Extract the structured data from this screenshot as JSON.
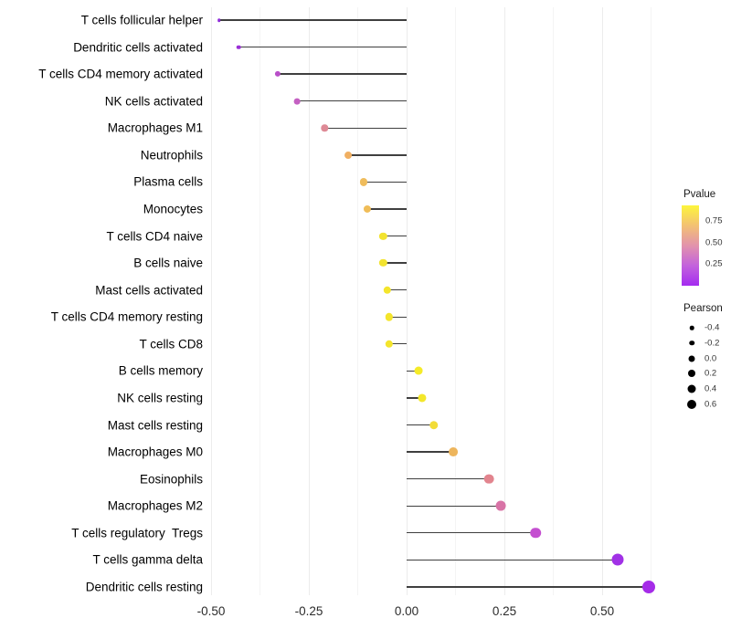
{
  "chart_data": {
    "type": "scatter",
    "subtype": "lollipop",
    "title": "",
    "xlabel": "",
    "ylabel": "",
    "xlim": [
      -0.52,
      0.66
    ],
    "grid": {
      "vertical_only": true,
      "major_values": [
        -0.5,
        -0.25,
        0.0,
        0.25,
        0.5
      ],
      "minor_values": [
        -0.375,
        -0.125,
        0.125,
        0.375,
        0.625
      ]
    },
    "x_ticks": [
      {
        "value": -0.5,
        "label": "-0.50"
      },
      {
        "value": -0.25,
        "label": "-0.25"
      },
      {
        "value": 0.0,
        "label": "0.00"
      },
      {
        "value": 0.25,
        "label": "0.25"
      },
      {
        "value": 0.5,
        "label": "0.50"
      }
    ],
    "points": [
      {
        "label": "T cells follicular helper",
        "pearson": -0.48,
        "pvalue_est": 0.03,
        "color": "#8E2BD8",
        "size": 3.6
      },
      {
        "label": "Dendritic cells activated",
        "pearson": -0.43,
        "pvalue_est": 0.06,
        "color": "#9A2FD6",
        "size": 4.6
      },
      {
        "label": "T cells CD4 memory activated",
        "pearson": -0.33,
        "pvalue_est": 0.12,
        "color": "#B84FC8",
        "size": 6.2
      },
      {
        "label": "NK cells activated",
        "pearson": -0.28,
        "pvalue_est": 0.18,
        "color": "#C460C2",
        "size": 6.8
      },
      {
        "label": "Macrophages M1",
        "pearson": -0.21,
        "pvalue_est": 0.33,
        "color": "#DE8A96",
        "size": 7.4
      },
      {
        "label": "Neutrophils",
        "pearson": -0.15,
        "pvalue_est": 0.55,
        "color": "#F0AF62",
        "size": 7.9
      },
      {
        "label": "Plasma cells",
        "pearson": -0.11,
        "pvalue_est": 0.6,
        "color": "#EFBC5C",
        "size": 8.1
      },
      {
        "label": "Monocytes",
        "pearson": -0.1,
        "pvalue_est": 0.6,
        "color": "#F0BD58",
        "size": 8.1
      },
      {
        "label": "T cells CD4 naive",
        "pearson": -0.06,
        "pvalue_est": 0.78,
        "color": "#F2E330",
        "size": 8.3
      },
      {
        "label": "B cells naive",
        "pearson": -0.06,
        "pvalue_est": 0.78,
        "color": "#F2E330",
        "size": 8.3
      },
      {
        "label": "Mast cells activated",
        "pearson": -0.05,
        "pvalue_est": 0.8,
        "color": "#F4E52C",
        "size": 8.4
      },
      {
        "label": "T cells CD4 memory resting",
        "pearson": -0.045,
        "pvalue_est": 0.8,
        "color": "#F4E52C",
        "size": 8.4
      },
      {
        "label": "T cells CD8",
        "pearson": -0.045,
        "pvalue_est": 0.8,
        "color": "#F4E52C",
        "size": 8.4
      },
      {
        "label": "B cells memory",
        "pearson": 0.03,
        "pvalue_est": 0.85,
        "color": "#F5EB28",
        "size": 8.9
      },
      {
        "label": "NK cells resting",
        "pearson": 0.04,
        "pvalue_est": 0.82,
        "color": "#F3E72B",
        "size": 9.1
      },
      {
        "label": "Mast cells resting",
        "pearson": 0.07,
        "pvalue_est": 0.72,
        "color": "#F2DC38",
        "size": 9.5
      },
      {
        "label": "Macrophages M0",
        "pearson": 0.12,
        "pvalue_est": 0.57,
        "color": "#EDB55C",
        "size": 9.9
      },
      {
        "label": "Eosinophils",
        "pearson": 0.21,
        "pvalue_est": 0.33,
        "color": "#E2848E",
        "size": 10.7
      },
      {
        "label": "Macrophages M2",
        "pearson": 0.24,
        "pvalue_est": 0.25,
        "color": "#D873A6",
        "size": 10.9
      },
      {
        "label": "T cells regulatory  Tregs",
        "pearson": 0.33,
        "pvalue_est": 0.13,
        "color": "#C44FD0",
        "size": 11.6
      },
      {
        "label": "T cells gamma delta",
        "pearson": 0.54,
        "pvalue_est": 0.05,
        "color": "#A131E6",
        "size": 13.0
      },
      {
        "label": "Dendritic cells resting",
        "pearson": 0.62,
        "pvalue_est": 0.04,
        "color": "#A52CE8",
        "size": 14.0
      }
    ],
    "legend_pvalue": {
      "title": "Pvalue",
      "ticks": [
        {
          "label": "0.75",
          "offset": 17
        },
        {
          "label": "0.50",
          "offset": 41
        },
        {
          "label": "0.25",
          "offset": 64
        }
      ],
      "gradient_stops": [
        "#FDF53B",
        "#F3C173",
        "#E293AC",
        "#C362DC",
        "#A42BF0"
      ]
    },
    "legend_pearson": {
      "title": "Pearson",
      "entries": [
        {
          "label": "-0.4",
          "size": 4.5
        },
        {
          "label": "-0.2",
          "size": 5.5
        },
        {
          "label": "0.0",
          "size": 7.0
        },
        {
          "label": "0.2",
          "size": 8.0
        },
        {
          "label": "0.4",
          "size": 9.0
        },
        {
          "label": "0.6",
          "size": 10.0
        }
      ]
    },
    "stem_color": "#3f3f3f",
    "background": "#ffffff"
  }
}
